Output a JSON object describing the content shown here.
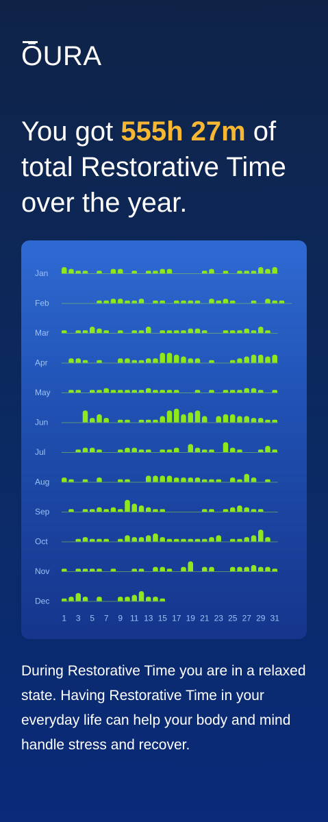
{
  "brand": {
    "name": "ŌURA"
  },
  "headline": {
    "before": "You got ",
    "highlight": "555h 27m",
    "after": " of total Restorative Time over the year."
  },
  "footer": {
    "text": "During Restorative Time you are in a relaxed state. Having Restorative Time in your everyday life can help your body and mind handle stress and recover."
  },
  "colors": {
    "accent": "#f7b733",
    "bar": "#8ee81c",
    "baseline": "#8cd24a",
    "label": "#9cc2f7"
  },
  "chart_data": {
    "type": "bar",
    "x_ticks": [
      "1",
      "3",
      "5",
      "7",
      "9",
      "11",
      "13",
      "15",
      "17",
      "19",
      "21",
      "23",
      "25",
      "27",
      "29",
      "31"
    ],
    "months": [
      {
        "label": "Jan",
        "values": [
          3,
          2,
          1,
          1,
          0,
          1,
          0,
          2,
          2,
          0,
          1,
          0,
          1,
          1,
          2,
          2,
          0,
          0,
          0,
          0,
          1,
          2,
          0,
          1,
          0,
          1,
          1,
          1,
          3,
          2,
          3
        ]
      },
      {
        "label": "Feb",
        "values": [
          0,
          0,
          0,
          0,
          0,
          1,
          1,
          2,
          2,
          1,
          1,
          2,
          0,
          1,
          1,
          0,
          1,
          1,
          1,
          1,
          0,
          2,
          1,
          2,
          1,
          0,
          0,
          1,
          0,
          2,
          1,
          1,
          0
        ]
      },
      {
        "label": "Mar",
        "values": [
          1,
          0,
          1,
          1,
          3,
          2,
          1,
          0,
          1,
          0,
          1,
          1,
          3,
          0,
          1,
          1,
          1,
          1,
          2,
          2,
          1,
          0,
          0,
          1,
          1,
          1,
          2,
          1,
          3,
          1,
          0
        ]
      },
      {
        "label": "Apr",
        "values": [
          0,
          2,
          2,
          1,
          0,
          1,
          0,
          0,
          2,
          2,
          1,
          1,
          2,
          2,
          5,
          5,
          4,
          3,
          2,
          2,
          0,
          1,
          0,
          0,
          1,
          2,
          3,
          4,
          4,
          3,
          4
        ]
      },
      {
        "label": "May",
        "values": [
          0,
          1,
          1,
          0,
          1,
          1,
          2,
          1,
          1,
          1,
          1,
          1,
          2,
          1,
          1,
          1,
          1,
          0,
          0,
          1,
          0,
          1,
          0,
          1,
          1,
          1,
          2,
          2,
          1,
          0,
          1
        ]
      },
      {
        "label": "Jun",
        "values": [
          0,
          0,
          0,
          6,
          2,
          4,
          2,
          0,
          1,
          1,
          0,
          1,
          1,
          1,
          3,
          6,
          7,
          4,
          5,
          6,
          3,
          0,
          3,
          4,
          4,
          3,
          3,
          2,
          2,
          1,
          1
        ]
      },
      {
        "label": "Jul",
        "values": [
          0,
          0,
          1,
          2,
          2,
          1,
          0,
          0,
          1,
          2,
          2,
          1,
          1,
          0,
          1,
          1,
          2,
          0,
          4,
          2,
          1,
          1,
          0,
          5,
          2,
          1,
          0,
          0,
          1,
          3,
          1
        ]
      },
      {
        "label": "Aug",
        "values": [
          2,
          1,
          0,
          1,
          0,
          2,
          0,
          0,
          1,
          1,
          0,
          0,
          3,
          3,
          3,
          3,
          2,
          2,
          2,
          2,
          1,
          1,
          1,
          0,
          2,
          1,
          4,
          2,
          0,
          1,
          0
        ]
      },
      {
        "label": "Sep",
        "values": [
          0,
          1,
          0,
          1,
          1,
          2,
          1,
          2,
          1,
          6,
          4,
          3,
          2,
          1,
          1,
          0,
          0,
          0,
          0,
          0,
          1,
          1,
          0,
          1,
          2,
          3,
          2,
          1,
          1,
          0,
          0
        ]
      },
      {
        "label": "Oct",
        "values": [
          0,
          0,
          1,
          2,
          1,
          1,
          1,
          0,
          1,
          3,
          2,
          2,
          3,
          4,
          2,
          1,
          1,
          1,
          1,
          1,
          1,
          2,
          3,
          0,
          1,
          1,
          2,
          3,
          6,
          2,
          0
        ]
      },
      {
        "label": "Nov",
        "values": [
          1,
          0,
          1,
          1,
          1,
          1,
          0,
          1,
          0,
          0,
          1,
          1,
          0,
          2,
          2,
          1,
          0,
          2,
          5,
          0,
          2,
          2,
          0,
          0,
          2,
          2,
          2,
          3,
          2,
          2,
          1
        ]
      },
      {
        "label": "Dec",
        "values": [
          1,
          2,
          4,
          2,
          0,
          2,
          0,
          0,
          2,
          2,
          3,
          5,
          2,
          2,
          1
        ]
      }
    ]
  }
}
